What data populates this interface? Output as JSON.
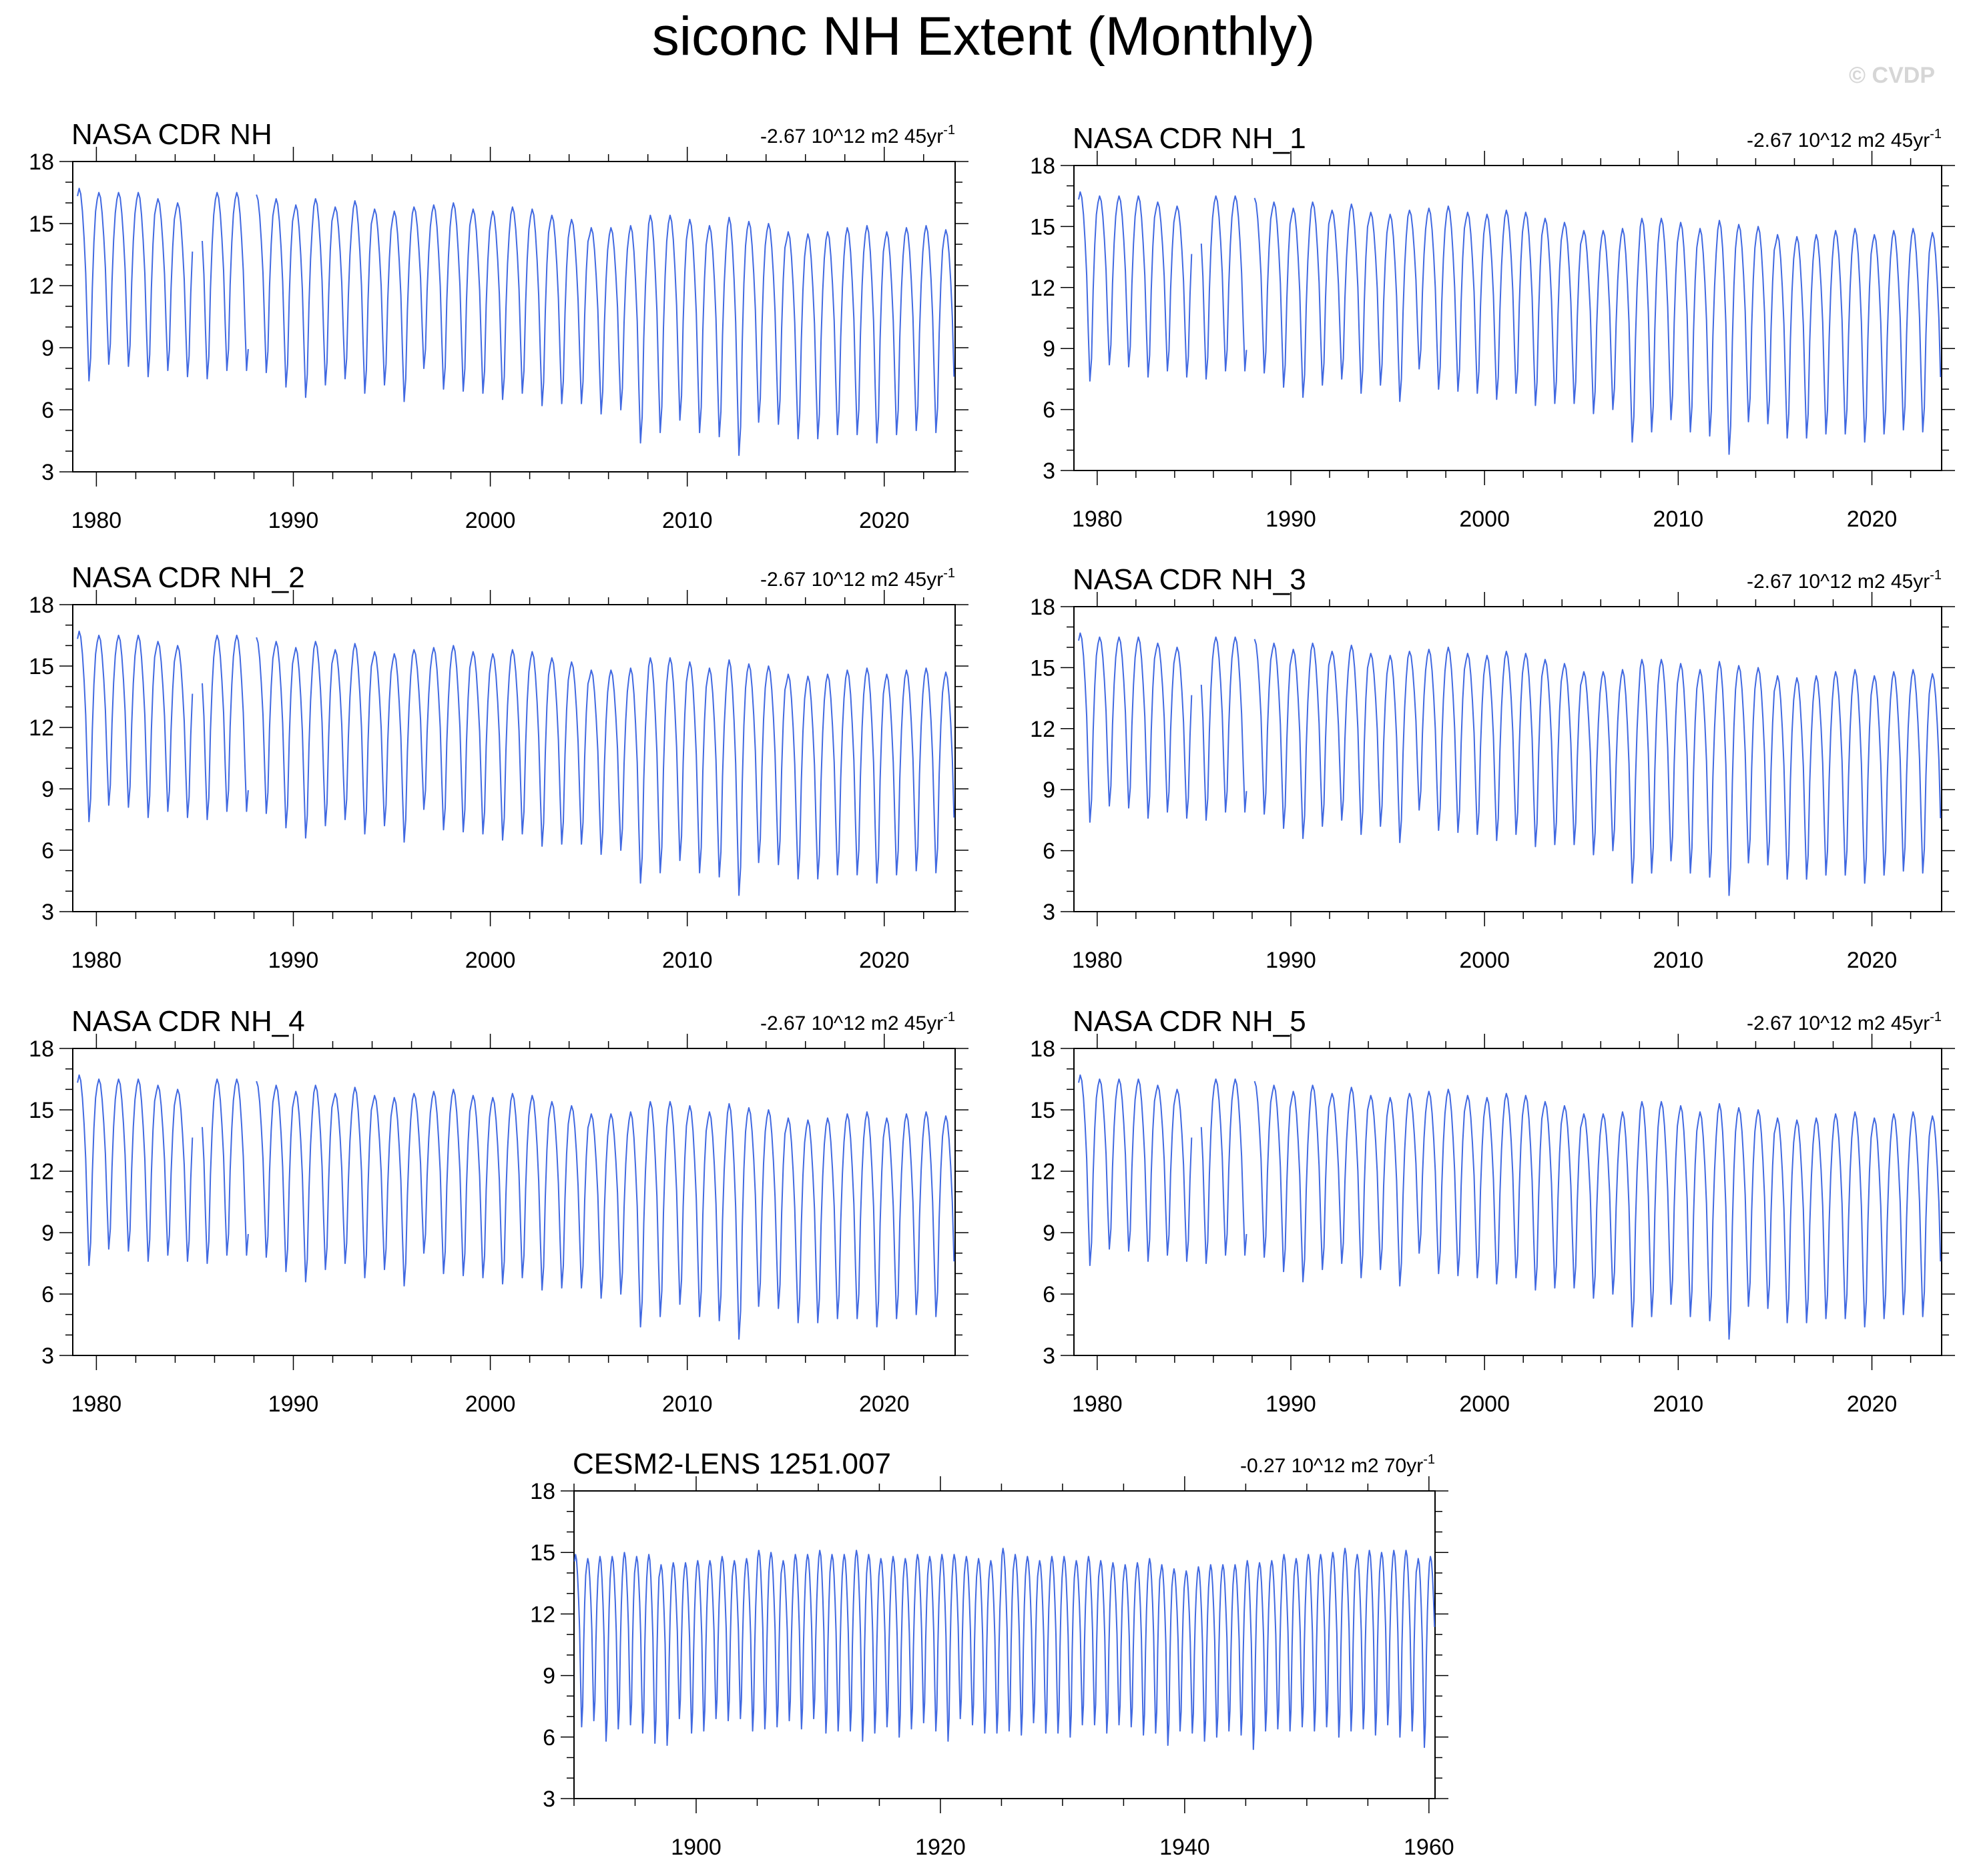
{
  "title": "siconc NH Extent (Monthly)",
  "watermark": "© CVDP",
  "colors": {
    "line": "#4169e1",
    "axis": "#000000"
  },
  "panel_common": {
    "obs_x_ticks": [
      1980,
      1990,
      2000,
      2010,
      2020
    ],
    "obs_x_range": [
      1978.8,
      2023.6
    ],
    "model_x_ticks": [
      1900,
      1920,
      1940,
      1960
    ],
    "model_x_range": [
      1890,
      1960.5
    ],
    "y_ticks": [
      3,
      6,
      9,
      12,
      15,
      18
    ],
    "y_range": [
      3,
      18
    ]
  },
  "chart_data": [
    {
      "type": "line",
      "title": "NASA CDR NH",
      "trend_value": "-2.67 10^12 m2 45yr",
      "trend_sup": "-1",
      "xlim": [
        1978.8,
        2023.6
      ],
      "ylim": [
        3,
        18
      ],
      "x_ticks": [
        1980,
        1990,
        2000,
        2010,
        2020
      ],
      "y_ticks": [
        3,
        6,
        9,
        12,
        15,
        18
      ],
      "start_year": 1979,
      "gap": [
        1984.9,
        1988.1
      ],
      "annual_max": [
        16.7,
        16.5,
        16.5,
        16.5,
        16.2,
        16.0,
        16.5,
        16.5,
        16.5,
        16.4,
        16.2,
        15.9,
        16.2,
        15.8,
        16.1,
        15.7,
        15.6,
        15.8,
        15.9,
        16.0,
        15.7,
        15.6,
        15.8,
        15.7,
        15.4,
        15.2,
        14.8,
        14.8,
        14.9,
        15.4,
        15.4,
        15.2,
        14.9,
        15.3,
        15.1,
        15.0,
        14.6,
        14.5,
        14.6,
        14.8,
        14.9,
        14.6,
        14.8,
        14.9,
        14.7
      ],
      "annual_min": [
        7.4,
        8.2,
        8.1,
        7.6,
        7.9,
        7.6,
        7.5,
        7.9,
        7.9,
        7.8,
        7.1,
        6.6,
        7.2,
        7.5,
        6.8,
        7.2,
        6.4,
        8.0,
        7.0,
        6.9,
        6.8,
        6.5,
        6.8,
        6.2,
        6.3,
        6.3,
        5.8,
        6.0,
        4.4,
        4.9,
        5.5,
        4.9,
        4.7,
        3.8,
        5.4,
        5.3,
        4.6,
        4.6,
        4.8,
        4.8,
        4.4,
        4.8,
        5.0,
        4.9,
        5.1
      ]
    },
    {
      "type": "line",
      "title": "NASA CDR NH_1",
      "trend_value": "-2.67 10^12 m2 45yr",
      "trend_sup": "-1",
      "xlim": [
        1978.8,
        2023.6
      ],
      "ylim": [
        3,
        18
      ],
      "x_ticks": [
        1980,
        1990,
        2000,
        2010,
        2020
      ],
      "y_ticks": [
        3,
        6,
        9,
        12,
        15,
        18
      ],
      "start_year": 1979,
      "gap": [
        1984.9,
        1988.1
      ],
      "annual_max": [
        16.7,
        16.5,
        16.5,
        16.5,
        16.2,
        16.0,
        16.5,
        16.5,
        16.5,
        16.4,
        16.2,
        15.9,
        16.2,
        15.8,
        16.1,
        15.7,
        15.6,
        15.8,
        15.9,
        16.0,
        15.7,
        15.6,
        15.8,
        15.7,
        15.4,
        15.2,
        14.8,
        14.8,
        14.9,
        15.4,
        15.4,
        15.2,
        14.9,
        15.3,
        15.1,
        15.0,
        14.6,
        14.5,
        14.6,
        14.8,
        14.9,
        14.6,
        14.8,
        14.9,
        14.7
      ],
      "annual_min": [
        7.4,
        8.2,
        8.1,
        7.6,
        7.9,
        7.6,
        7.5,
        7.9,
        7.9,
        7.8,
        7.1,
        6.6,
        7.2,
        7.5,
        6.8,
        7.2,
        6.4,
        8.0,
        7.0,
        6.9,
        6.8,
        6.5,
        6.8,
        6.2,
        6.3,
        6.3,
        5.8,
        6.0,
        4.4,
        4.9,
        5.5,
        4.9,
        4.7,
        3.8,
        5.4,
        5.3,
        4.6,
        4.6,
        4.8,
        4.8,
        4.4,
        4.8,
        5.0,
        4.9,
        5.1
      ]
    },
    {
      "type": "line",
      "title": "NASA CDR NH_2",
      "trend_value": "-2.67 10^12 m2 45yr",
      "trend_sup": "-1",
      "xlim": [
        1978.8,
        2023.6
      ],
      "ylim": [
        3,
        18
      ],
      "x_ticks": [
        1980,
        1990,
        2000,
        2010,
        2020
      ],
      "y_ticks": [
        3,
        6,
        9,
        12,
        15,
        18
      ],
      "start_year": 1979,
      "gap": [
        1984.9,
        1988.1
      ],
      "annual_max": [
        16.7,
        16.5,
        16.5,
        16.5,
        16.2,
        16.0,
        16.5,
        16.5,
        16.5,
        16.4,
        16.2,
        15.9,
        16.2,
        15.8,
        16.1,
        15.7,
        15.6,
        15.8,
        15.9,
        16.0,
        15.7,
        15.6,
        15.8,
        15.7,
        15.4,
        15.2,
        14.8,
        14.8,
        14.9,
        15.4,
        15.4,
        15.2,
        14.9,
        15.3,
        15.1,
        15.0,
        14.6,
        14.5,
        14.6,
        14.8,
        14.9,
        14.6,
        14.8,
        14.9,
        14.7
      ],
      "annual_min": [
        7.4,
        8.2,
        8.1,
        7.6,
        7.9,
        7.6,
        7.5,
        7.9,
        7.9,
        7.8,
        7.1,
        6.6,
        7.2,
        7.5,
        6.8,
        7.2,
        6.4,
        8.0,
        7.0,
        6.9,
        6.8,
        6.5,
        6.8,
        6.2,
        6.3,
        6.3,
        5.8,
        6.0,
        4.4,
        4.9,
        5.5,
        4.9,
        4.7,
        3.8,
        5.4,
        5.3,
        4.6,
        4.6,
        4.8,
        4.8,
        4.4,
        4.8,
        5.0,
        4.9,
        5.1
      ]
    },
    {
      "type": "line",
      "title": "NASA CDR NH_3",
      "trend_value": "-2.67 10^12 m2 45yr",
      "trend_sup": "-1",
      "xlim": [
        1978.8,
        2023.6
      ],
      "ylim": [
        3,
        18
      ],
      "x_ticks": [
        1980,
        1990,
        2000,
        2010,
        2020
      ],
      "y_ticks": [
        3,
        6,
        9,
        12,
        15,
        18
      ],
      "start_year": 1979,
      "gap": [
        1984.9,
        1988.1
      ],
      "annual_max": [
        16.7,
        16.5,
        16.5,
        16.5,
        16.2,
        16.0,
        16.5,
        16.5,
        16.5,
        16.4,
        16.2,
        15.9,
        16.2,
        15.8,
        16.1,
        15.7,
        15.6,
        15.8,
        15.9,
        16.0,
        15.7,
        15.6,
        15.8,
        15.7,
        15.4,
        15.2,
        14.8,
        14.8,
        14.9,
        15.4,
        15.4,
        15.2,
        14.9,
        15.3,
        15.1,
        15.0,
        14.6,
        14.5,
        14.6,
        14.8,
        14.9,
        14.6,
        14.8,
        14.9,
        14.7
      ],
      "annual_min": [
        7.4,
        8.2,
        8.1,
        7.6,
        7.9,
        7.6,
        7.5,
        7.9,
        7.9,
        7.8,
        7.1,
        6.6,
        7.2,
        7.5,
        6.8,
        7.2,
        6.4,
        8.0,
        7.0,
        6.9,
        6.8,
        6.5,
        6.8,
        6.2,
        6.3,
        6.3,
        5.8,
        6.0,
        4.4,
        4.9,
        5.5,
        4.9,
        4.7,
        3.8,
        5.4,
        5.3,
        4.6,
        4.6,
        4.8,
        4.8,
        4.4,
        4.8,
        5.0,
        4.9,
        5.1
      ]
    },
    {
      "type": "line",
      "title": "NASA CDR NH_4",
      "trend_value": "-2.67 10^12 m2 45yr",
      "trend_sup": "-1",
      "xlim": [
        1978.8,
        2023.6
      ],
      "ylim": [
        3,
        18
      ],
      "x_ticks": [
        1980,
        1990,
        2000,
        2010,
        2020
      ],
      "y_ticks": [
        3,
        6,
        9,
        12,
        15,
        18
      ],
      "start_year": 1979,
      "gap": [
        1984.9,
        1988.1
      ],
      "annual_max": [
        16.7,
        16.5,
        16.5,
        16.5,
        16.2,
        16.0,
        16.5,
        16.5,
        16.5,
        16.4,
        16.2,
        15.9,
        16.2,
        15.8,
        16.1,
        15.7,
        15.6,
        15.8,
        15.9,
        16.0,
        15.7,
        15.6,
        15.8,
        15.7,
        15.4,
        15.2,
        14.8,
        14.8,
        14.9,
        15.4,
        15.4,
        15.2,
        14.9,
        15.3,
        15.1,
        15.0,
        14.6,
        14.5,
        14.6,
        14.8,
        14.9,
        14.6,
        14.8,
        14.9,
        14.7
      ],
      "annual_min": [
        7.4,
        8.2,
        8.1,
        7.6,
        7.9,
        7.6,
        7.5,
        7.9,
        7.9,
        7.8,
        7.1,
        6.6,
        7.2,
        7.5,
        6.8,
        7.2,
        6.4,
        8.0,
        7.0,
        6.9,
        6.8,
        6.5,
        6.8,
        6.2,
        6.3,
        6.3,
        5.8,
        6.0,
        4.4,
        4.9,
        5.5,
        4.9,
        4.7,
        3.8,
        5.4,
        5.3,
        4.6,
        4.6,
        4.8,
        4.8,
        4.4,
        4.8,
        5.0,
        4.9,
        5.1
      ]
    },
    {
      "type": "line",
      "title": "NASA CDR NH_5",
      "trend_value": "-2.67 10^12 m2 45yr",
      "trend_sup": "-1",
      "xlim": [
        1978.8,
        2023.6
      ],
      "ylim": [
        3,
        18
      ],
      "x_ticks": [
        1980,
        1990,
        2000,
        2010,
        2020
      ],
      "y_ticks": [
        3,
        6,
        9,
        12,
        15,
        18
      ],
      "start_year": 1979,
      "gap": [
        1984.9,
        1988.1
      ],
      "annual_max": [
        16.7,
        16.5,
        16.5,
        16.5,
        16.2,
        16.0,
        16.5,
        16.5,
        16.5,
        16.4,
        16.2,
        15.9,
        16.2,
        15.8,
        16.1,
        15.7,
        15.6,
        15.8,
        15.9,
        16.0,
        15.7,
        15.6,
        15.8,
        15.7,
        15.4,
        15.2,
        14.8,
        14.8,
        14.9,
        15.4,
        15.4,
        15.2,
        14.9,
        15.3,
        15.1,
        15.0,
        14.6,
        14.5,
        14.6,
        14.8,
        14.9,
        14.6,
        14.8,
        14.9,
        14.7
      ],
      "annual_min": [
        7.4,
        8.2,
        8.1,
        7.6,
        7.9,
        7.6,
        7.5,
        7.9,
        7.9,
        7.8,
        7.1,
        6.6,
        7.2,
        7.5,
        6.8,
        7.2,
        6.4,
        8.0,
        7.0,
        6.9,
        6.8,
        6.5,
        6.8,
        6.2,
        6.3,
        6.3,
        5.8,
        6.0,
        4.4,
        4.9,
        5.5,
        4.9,
        4.7,
        3.8,
        5.4,
        5.3,
        4.6,
        4.6,
        4.8,
        4.8,
        4.4,
        4.8,
        5.0,
        4.9,
        5.1
      ]
    },
    {
      "type": "line",
      "title": "CESM2-LENS 1251.007",
      "trend_value": "-0.27 10^12 m2 70yr",
      "trend_sup": "-1",
      "xlim": [
        1890,
        1960.5
      ],
      "ylim": [
        3,
        18
      ],
      "x_ticks": [
        1900,
        1920,
        1940,
        1960
      ],
      "y_ticks": [
        3,
        6,
        9,
        12,
        15,
        18
      ],
      "start_year": 1890,
      "gap": null,
      "annual_max": [
        14.9,
        14.7,
        14.8,
        14.8,
        15.0,
        14.8,
        14.9,
        14.4,
        14.5,
        14.5,
        14.6,
        14.6,
        14.8,
        14.6,
        14.7,
        15.1,
        15.0,
        14.6,
        14.9,
        14.9,
        15.1,
        14.9,
        14.9,
        15.1,
        14.9,
        14.7,
        14.8,
        14.7,
        14.9,
        14.8,
        14.9,
        14.9,
        14.8,
        14.7,
        14.6,
        15.2,
        14.9,
        14.8,
        14.6,
        14.8,
        14.8,
        14.6,
        14.8,
        14.6,
        14.5,
        14.4,
        14.5,
        14.7,
        14.4,
        14.2,
        14.1,
        14.3,
        14.4,
        14.4,
        14.4,
        14.6,
        14.5,
        14.6,
        14.9,
        14.7,
        14.9,
        14.9,
        15.0,
        15.2,
        14.9,
        15.1,
        15.0,
        15.1,
        15.1,
        14.7,
        14.8
      ],
      "annual_min": [
        6.5,
        6.8,
        5.8,
        6.4,
        6.6,
        6.2,
        5.7,
        5.6,
        6.9,
        6.2,
        6.3,
        6.9,
        6.8,
        6.9,
        6.3,
        6.4,
        6.5,
        6.8,
        6.4,
        6.9,
        6.2,
        6.3,
        6.3,
        5.8,
        6.2,
        6.5,
        6.0,
        6.4,
        6.7,
        6.3,
        5.8,
        6.9,
        6.6,
        6.2,
        6.2,
        6.3,
        6.1,
        6.7,
        6.2,
        6.2,
        6.0,
        6.6,
        6.6,
        6.2,
        6.6,
        6.5,
        6.1,
        6.2,
        5.6,
        6.3,
        6.2,
        5.8,
        6.0,
        6.3,
        6.1,
        5.4,
        6.3,
        6.4,
        6.3,
        6.5,
        6.3,
        6.5,
        6.0,
        6.3,
        6.4,
        6.1,
        6.6,
        6.0,
        6.3,
        5.5,
        7.0
      ]
    }
  ]
}
